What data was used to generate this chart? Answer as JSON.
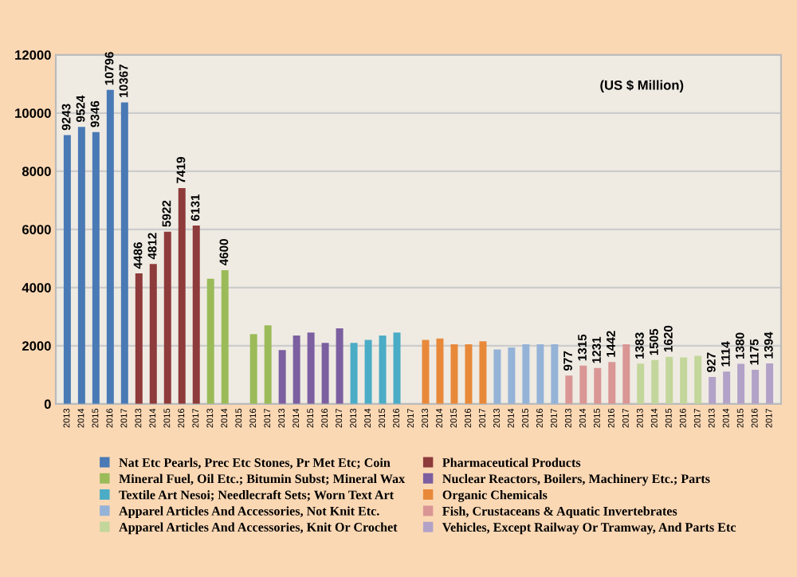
{
  "chart_data": {
    "type": "bar",
    "categories": [
      "2013",
      "2014",
      "2015",
      "2016",
      "2017",
      "2013",
      "2014",
      "2015",
      "2016",
      "2017",
      "2013",
      "2014",
      "2015",
      "2016",
      "2017",
      "2013",
      "2014",
      "2015",
      "2016",
      "2017",
      "2013",
      "2014",
      "2015",
      "2016",
      "2017",
      "2013",
      "2014",
      "2015",
      "2016",
      "2017",
      "2013",
      "2014",
      "2015",
      "2016",
      "2017",
      "2013",
      "2014",
      "2015",
      "2016",
      "2017",
      "2013",
      "2014",
      "2015",
      "2016",
      "2017",
      "2013",
      "2014",
      "2015",
      "2016",
      "2017"
    ],
    "series": [
      {
        "name": "Nat Etc Pearls, Prec Etc Stones, Pr Met Etc; Coin",
        "color": "#4a7ab5",
        "values": [
          9243,
          9524,
          9346,
          10796,
          10367,
          null,
          null,
          null,
          null,
          null,
          null,
          null,
          null,
          null,
          null,
          null,
          null,
          null,
          null,
          null,
          null,
          null,
          null,
          null,
          null,
          null,
          null,
          null,
          null,
          null,
          null,
          null,
          null,
          null,
          null,
          null,
          null,
          null,
          null,
          null,
          null,
          null,
          null,
          null,
          null,
          null,
          null,
          null,
          null,
          null
        ],
        "value_labels": [
          "9243",
          "9524",
          "9346",
          "10796",
          "10367",
          null,
          null,
          null,
          null,
          null,
          null,
          null,
          null,
          null,
          null,
          null,
          null,
          null,
          null,
          null,
          null,
          null,
          null,
          null,
          null,
          null,
          null,
          null,
          null,
          null,
          null,
          null,
          null,
          null,
          null,
          null,
          null,
          null,
          null,
          null,
          null,
          null,
          null,
          null,
          null,
          null,
          null,
          null,
          null,
          null
        ]
      },
      {
        "name": "Pharmaceutical Products",
        "color": "#8e3b3b",
        "values": [
          null,
          null,
          null,
          null,
          null,
          4486,
          4812,
          5922,
          7419,
          6131,
          null,
          null,
          null,
          null,
          null,
          null,
          null,
          null,
          null,
          null,
          null,
          null,
          null,
          null,
          null,
          null,
          null,
          null,
          null,
          null,
          null,
          null,
          null,
          null,
          null,
          null,
          null,
          null,
          null,
          null,
          null,
          null,
          null,
          null,
          null,
          null,
          null,
          null,
          null,
          null
        ],
        "value_labels": [
          null,
          null,
          null,
          null,
          null,
          "4486",
          "4812",
          "5922",
          "7419",
          "6131",
          null,
          null,
          null,
          null,
          null,
          null,
          null,
          null,
          null,
          null,
          null,
          null,
          null,
          null,
          null,
          null,
          null,
          null,
          null,
          null,
          null,
          null,
          null,
          null,
          null,
          null,
          null,
          null,
          null,
          null,
          null,
          null,
          null,
          null,
          null,
          null,
          null,
          null,
          null,
          null
        ]
      },
      {
        "name": "Mineral Fuel, Oil Etc.; Bitumin Subst; Mineral Wax",
        "color": "#9bbb59",
        "values": [
          null,
          null,
          null,
          null,
          null,
          null,
          null,
          null,
          null,
          null,
          4300,
          4600,
          null,
          2400,
          2700,
          null,
          null,
          null,
          null,
          null,
          null,
          null,
          null,
          null,
          null,
          null,
          null,
          null,
          null,
          null,
          null,
          null,
          null,
          null,
          null,
          null,
          null,
          null,
          null,
          null,
          null,
          null,
          null,
          null,
          null,
          null,
          null,
          null,
          null,
          null
        ],
        "value_labels": [
          null,
          null,
          null,
          null,
          null,
          null,
          null,
          null,
          null,
          null,
          null,
          "4600",
          null,
          null,
          null,
          null,
          null,
          null,
          null,
          null,
          null,
          null,
          null,
          null,
          null,
          null,
          null,
          null,
          null,
          null,
          null,
          null,
          null,
          null,
          null,
          null,
          null,
          null,
          null,
          null,
          null,
          null,
          null,
          null,
          null,
          null,
          null,
          null,
          null,
          null
        ]
      },
      {
        "name": "Nuclear Reactors, Boilers, Machinery Etc.; Parts",
        "color": "#7c5fa0",
        "values": [
          null,
          null,
          null,
          null,
          null,
          null,
          null,
          null,
          null,
          null,
          null,
          null,
          null,
          null,
          null,
          1850,
          2350,
          2450,
          2100,
          2600,
          null,
          null,
          null,
          null,
          null,
          null,
          null,
          null,
          null,
          null,
          null,
          null,
          null,
          null,
          null,
          null,
          null,
          null,
          null,
          null,
          null,
          null,
          null,
          null,
          null,
          null,
          null,
          null,
          null,
          null
        ]
      },
      {
        "name": "Textile Art Nesoi; Needlecraft Sets; Worn Text Art",
        "color": "#4bacc6",
        "values": [
          null,
          null,
          null,
          null,
          null,
          null,
          null,
          null,
          null,
          null,
          null,
          null,
          null,
          null,
          null,
          null,
          null,
          null,
          null,
          null,
          2100,
          2200,
          2350,
          2450,
          null,
          null,
          null,
          null,
          null,
          null,
          null,
          null,
          null,
          null,
          null,
          null,
          null,
          null,
          null,
          null,
          null,
          null,
          null,
          null,
          null,
          null,
          null,
          null,
          null,
          null
        ]
      },
      {
        "name": "Organic Chemicals",
        "color": "#e8893a",
        "values": [
          null,
          null,
          null,
          null,
          null,
          null,
          null,
          null,
          null,
          null,
          null,
          null,
          null,
          null,
          null,
          null,
          null,
          null,
          null,
          null,
          null,
          null,
          null,
          null,
          null,
          2200,
          2250,
          2050,
          2050,
          2150,
          null,
          null,
          null,
          null,
          null,
          null,
          null,
          null,
          null,
          null,
          null,
          null,
          null,
          null,
          null,
          null,
          null,
          null,
          null,
          null
        ]
      },
      {
        "name": "Apparel Articles And Accessories, Not Knit Etc.",
        "color": "#95b3d7",
        "values": [
          null,
          null,
          null,
          null,
          null,
          null,
          null,
          null,
          null,
          null,
          null,
          null,
          null,
          null,
          null,
          null,
          null,
          null,
          null,
          null,
          null,
          null,
          null,
          null,
          null,
          null,
          null,
          null,
          null,
          null,
          1870,
          1940,
          2050,
          2050,
          2050,
          null,
          null,
          null,
          null,
          null,
          null,
          null,
          null,
          null,
          null,
          null,
          null,
          null,
          null,
          null
        ]
      },
      {
        "name": "Fish, Crustaceans & Aquatic Invertebrates",
        "color": "#d99694",
        "values": [
          null,
          null,
          null,
          null,
          null,
          null,
          null,
          null,
          null,
          null,
          null,
          null,
          null,
          null,
          null,
          null,
          null,
          null,
          null,
          null,
          null,
          null,
          null,
          null,
          null,
          null,
          null,
          null,
          null,
          null,
          null,
          null,
          null,
          null,
          null,
          977,
          1315,
          1231,
          1442,
          2050,
          null,
          null,
          null,
          null,
          null,
          null,
          null,
          null,
          null,
          null
        ],
        "value_labels": [
          null,
          null,
          null,
          null,
          null,
          null,
          null,
          null,
          null,
          null,
          null,
          null,
          null,
          null,
          null,
          null,
          null,
          null,
          null,
          null,
          null,
          null,
          null,
          null,
          null,
          null,
          null,
          null,
          null,
          null,
          null,
          null,
          null,
          null,
          null,
          "977",
          "1315",
          "1231",
          "1442",
          null,
          null,
          null,
          null,
          null,
          null,
          null,
          null,
          null,
          null,
          null
        ]
      },
      {
        "name": "Apparel Articles And Accessories, Knit Or Crochet",
        "color": "#c3d69b",
        "values": [
          null,
          null,
          null,
          null,
          null,
          null,
          null,
          null,
          null,
          null,
          null,
          null,
          null,
          null,
          null,
          null,
          null,
          null,
          null,
          null,
          null,
          null,
          null,
          null,
          null,
          null,
          null,
          null,
          null,
          null,
          null,
          null,
          null,
          null,
          null,
          null,
          null,
          null,
          null,
          null,
          1383,
          1505,
          1620,
          1600,
          1650,
          null,
          null,
          null,
          null,
          null
        ],
        "value_labels": [
          null,
          null,
          null,
          null,
          null,
          null,
          null,
          null,
          null,
          null,
          null,
          null,
          null,
          null,
          null,
          null,
          null,
          null,
          null,
          null,
          null,
          null,
          null,
          null,
          null,
          null,
          null,
          null,
          null,
          null,
          null,
          null,
          null,
          null,
          null,
          null,
          null,
          null,
          null,
          null,
          "1383",
          "1505",
          "1620",
          null,
          null,
          null,
          null,
          null,
          null,
          null
        ]
      },
      {
        "name": "Vehicles, Except Railway Or Tramway, And Parts Etc",
        "color": "#b3a2c7",
        "values": [
          null,
          null,
          null,
          null,
          null,
          null,
          null,
          null,
          null,
          null,
          null,
          null,
          null,
          null,
          null,
          null,
          null,
          null,
          null,
          null,
          null,
          null,
          null,
          null,
          null,
          null,
          null,
          null,
          null,
          null,
          null,
          null,
          null,
          null,
          null,
          null,
          null,
          null,
          null,
          null,
          null,
          null,
          null,
          null,
          null,
          927,
          1114,
          1380,
          1175,
          1394
        ],
        "value_labels": [
          null,
          null,
          null,
          null,
          null,
          null,
          null,
          null,
          null,
          null,
          null,
          null,
          null,
          null,
          null,
          null,
          null,
          null,
          null,
          null,
          null,
          null,
          null,
          null,
          null,
          null,
          null,
          null,
          null,
          null,
          null,
          null,
          null,
          null,
          null,
          null,
          null,
          null,
          null,
          null,
          null,
          null,
          null,
          null,
          null,
          "927",
          "1114",
          "1380",
          "1175",
          "1394"
        ]
      }
    ],
    "ylim": [
      0,
      12000
    ],
    "yticks": [
      0,
      2000,
      4000,
      6000,
      8000,
      10000,
      12000
    ],
    "grid": "y",
    "legend": "bottom",
    "annotations": [
      "(US $ Million)"
    ]
  }
}
